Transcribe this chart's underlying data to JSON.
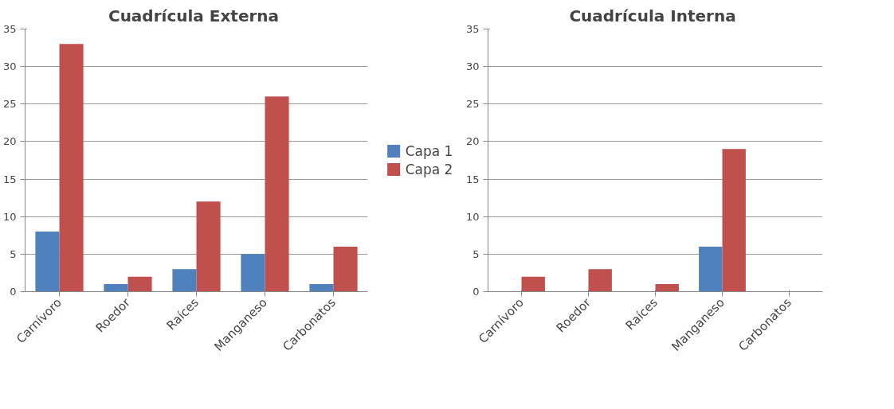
{
  "chart_data": [
    {
      "type": "bar",
      "title": "Cuadrícula  Externa",
      "categories": [
        "Carnívoro",
        "Roedor",
        "Raíces",
        "Manganeso",
        "Carbonatos"
      ],
      "series": [
        {
          "name": "Capa 1",
          "color": "#4f81bd",
          "values": [
            8,
            1,
            3,
            5,
            1
          ]
        },
        {
          "name": "Capa 2",
          "color": "#c0504d",
          "values": [
            33,
            2,
            12,
            26,
            6
          ]
        }
      ],
      "ylim": [
        0,
        35
      ],
      "yticks": [
        0,
        5,
        10,
        15,
        20,
        25,
        30,
        35
      ],
      "grid": "y",
      "legend": "right"
    },
    {
      "type": "bar",
      "title": "Cuadrícula  Interna",
      "categories": [
        "Carnívoro",
        "Roedor",
        "Raíces",
        "Manganeso",
        "Carbonatos"
      ],
      "series": [
        {
          "color": "#4f81bd",
          "values": [
            0,
            0,
            0,
            6,
            0
          ]
        },
        {
          "color": "#c0504d",
          "values": [
            2,
            3,
            1,
            19,
            0
          ]
        }
      ],
      "ylim": [
        0,
        35
      ],
      "yticks": [
        0,
        5,
        10,
        15,
        20,
        25,
        30,
        35
      ],
      "grid": "y"
    }
  ]
}
